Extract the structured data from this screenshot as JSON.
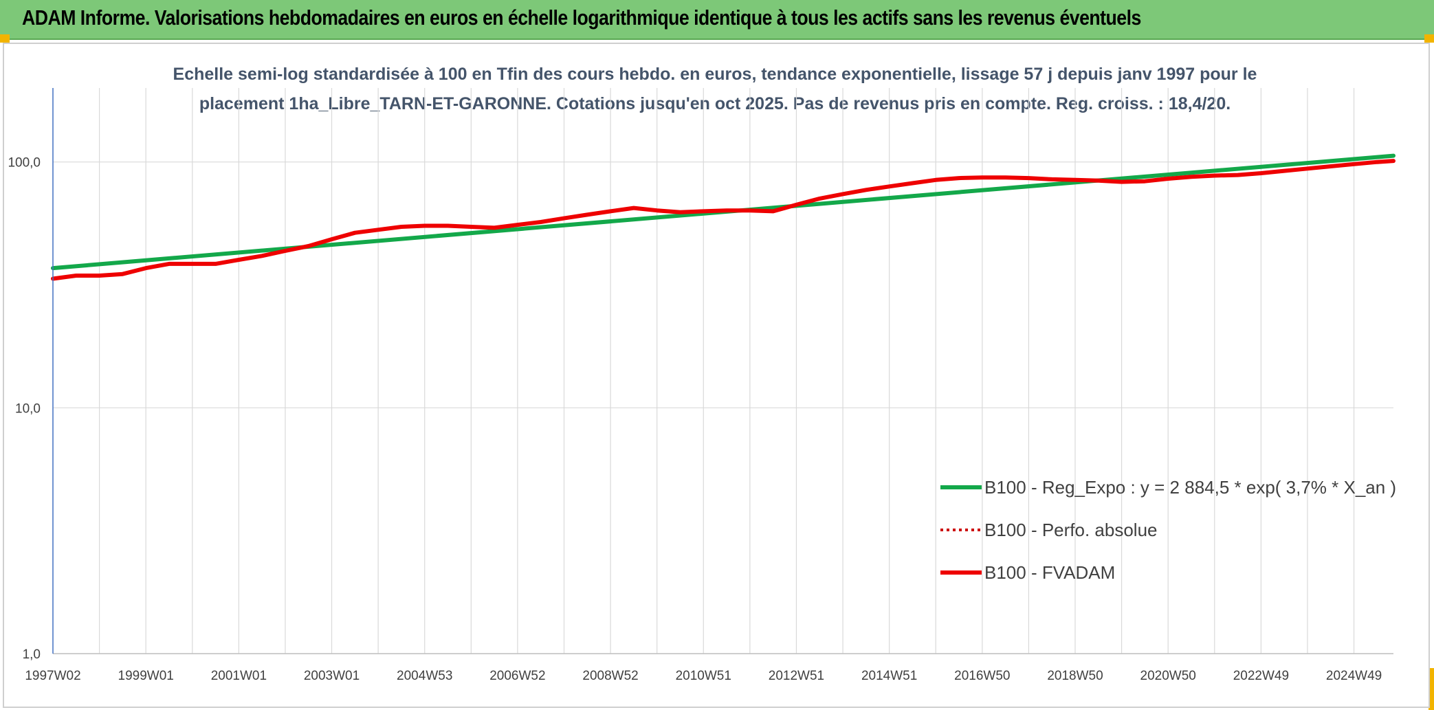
{
  "banner": {
    "title": "ADAM Informe. Valorisations hebdomadaires en euros en échelle logarithmique identique à tous les actifs sans les revenus éventuels"
  },
  "colors": {
    "banner_bg": "#7dc878",
    "regression": "#13a84a",
    "fvadam": "#ee0000",
    "perfo": "#cc0000",
    "grid": "#d9d9d9",
    "axis": "#4472c4",
    "corner": "#f2b400"
  },
  "chart_data": {
    "type": "line",
    "scale": "log",
    "subtitle_lines": [
      "Echelle semi-log standardisée à 100 en Tfin des cours hebdo. en euros, tendance exponentielle, lissage 57 j depuis janv 1997 pour le",
      "placement 1ha_Libre_TARN-ET-GARONNE. Cotations jusqu'en oct 2025. Pas de revenus pris en compte. Reg. croiss. : 18,4/20."
    ],
    "xlim": [
      1997.0,
      2025.85
    ],
    "ylim": [
      1,
      200
    ],
    "y_ticks": [
      {
        "value": 1,
        "label": "1,0"
      },
      {
        "value": 10,
        "label": "10,0"
      },
      {
        "value": 100,
        "label": "100,0"
      }
    ],
    "x_ticks": [
      {
        "value": 1997.0,
        "label": "1997W02"
      },
      {
        "value": 1999.0,
        "label": "1999W01"
      },
      {
        "value": 2001.0,
        "label": "2001W01"
      },
      {
        "value": 2003.0,
        "label": "2003W01"
      },
      {
        "value": 2005.0,
        "label": "2004W53"
      },
      {
        "value": 2007.0,
        "label": "2006W52"
      },
      {
        "value": 2009.0,
        "label": "2008W52"
      },
      {
        "value": 2011.0,
        "label": "2010W51"
      },
      {
        "value": 2013.0,
        "label": "2012W51"
      },
      {
        "value": 2015.0,
        "label": "2014W51"
      },
      {
        "value": 2017.0,
        "label": "2016W50"
      },
      {
        "value": 2019.0,
        "label": "2018W50"
      },
      {
        "value": 2021.0,
        "label": "2020W50"
      },
      {
        "value": 2023.0,
        "label": "2022W49"
      },
      {
        "value": 2025.0,
        "label": "2024W49"
      }
    ],
    "grid_years": [
      1997,
      1998,
      1999,
      2000,
      2001,
      2002,
      2003,
      2004,
      2005,
      2006,
      2007,
      2008,
      2009,
      2010,
      2011,
      2012,
      2013,
      2014,
      2015,
      2016,
      2017,
      2018,
      2019,
      2020,
      2021,
      2022,
      2023,
      2024,
      2025
    ],
    "series": [
      {
        "name": "B100 - Reg_Expo : y = 2 884,5 * exp( 3,7% *  X_an )",
        "style": "solid",
        "x": [
          1997.0,
          2025.85
        ],
        "values": [
          37.0,
          106.0
        ]
      },
      {
        "name": "B100 - Perfo. absolue",
        "style": "dotted",
        "x": [],
        "values": []
      },
      {
        "name": "B100 - FVADAM",
        "style": "solid",
        "x": [
          1997.0,
          1997.5,
          1998.0,
          1998.5,
          1999.0,
          1999.5,
          2000.0,
          2000.5,
          2001.0,
          2001.5,
          2002.0,
          2002.5,
          2003.0,
          2003.5,
          2004.0,
          2004.5,
          2005.0,
          2005.5,
          2006.0,
          2006.5,
          2007.0,
          2007.5,
          2008.0,
          2008.5,
          2009.0,
          2009.5,
          2010.0,
          2010.5,
          2011.0,
          2011.5,
          2012.0,
          2012.5,
          2013.0,
          2013.5,
          2014.0,
          2014.5,
          2015.0,
          2015.5,
          2016.0,
          2016.5,
          2017.0,
          2017.5,
          2018.0,
          2018.5,
          2019.0,
          2019.5,
          2020.0,
          2020.5,
          2021.0,
          2021.5,
          2022.0,
          2022.5,
          2023.0,
          2023.5,
          2024.0,
          2024.5,
          2025.0,
          2025.5,
          2025.85
        ],
        "values": [
          33.5,
          34.5,
          34.5,
          35.0,
          37.0,
          38.5,
          38.5,
          38.5,
          40.0,
          41.5,
          43.5,
          45.5,
          48.5,
          51.5,
          53.0,
          54.5,
          55.0,
          55.0,
          54.5,
          54.0,
          55.5,
          57.0,
          59.0,
          61.0,
          63.0,
          65.0,
          63.5,
          62.5,
          63.0,
          63.5,
          63.5,
          63.0,
          67.0,
          71.0,
          74.0,
          77.0,
          79.5,
          82.0,
          84.5,
          86.0,
          86.5,
          86.5,
          86.0,
          85.0,
          84.5,
          84.0,
          83.0,
          83.5,
          85.5,
          87.0,
          88.0,
          88.5,
          90.0,
          92.0,
          94.0,
          96.0,
          98.0,
          100.0,
          101.0
        ]
      }
    ]
  }
}
